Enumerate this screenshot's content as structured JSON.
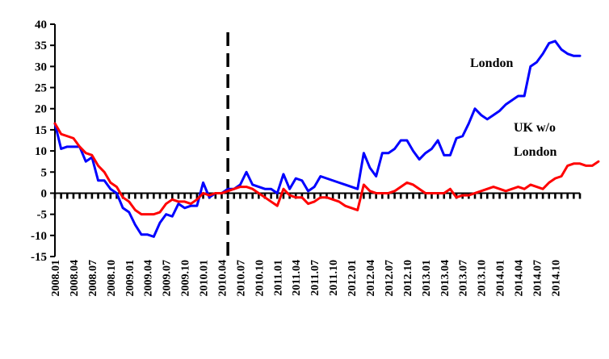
{
  "chart_data": {
    "type": "line",
    "title": "",
    "xlabel": "",
    "ylabel": "",
    "ylim": [
      -15,
      40
    ],
    "yticks": [
      -15,
      -10,
      -5,
      0,
      5,
      10,
      15,
      20,
      25,
      30,
      35,
      40
    ],
    "x_start": "2008.01",
    "x_tick_labels": [
      "2008.01",
      "2008.04",
      "2008.07",
      "2008.10",
      "2009.01",
      "2009.04",
      "2009.07",
      "2009.10",
      "2010.01",
      "2010.04",
      "2010.07",
      "2010.10",
      "2011.01",
      "2011.04",
      "2011.07",
      "2011.10",
      "2012.01",
      "2012.04",
      "2012.07",
      "2012.10",
      "2013.01",
      "2013.04",
      "2013.07",
      "2013.10",
      "2014.01",
      "2014.04",
      "2014.07",
      "2014.10"
    ],
    "vertical_marker": "2010.05",
    "grid": false,
    "series": [
      {
        "name": "London",
        "color": "#0000ff",
        "label_lines": [
          "London"
        ],
        "values": [
          16.5,
          10.5,
          11,
          11,
          11,
          7.5,
          8.5,
          3,
          3,
          1,
          0,
          -3.5,
          -4.5,
          -7.5,
          -9.8,
          -9.8,
          -10.3,
          -7,
          -5,
          -5.5,
          -2.5,
          -3.5,
          -3,
          -3,
          2.5,
          -1,
          0,
          0,
          1,
          1,
          2,
          5,
          2,
          1.5,
          1,
          1,
          0,
          4.5,
          1,
          3.5,
          3,
          0.5,
          1.5,
          4,
          3.5,
          3,
          2.5,
          2,
          1.5,
          1,
          9.5,
          6,
          4,
          9.5,
          9.5,
          10.5,
          12.5,
          12.5,
          10,
          8,
          9.5,
          10.5,
          12.5,
          9,
          9,
          13,
          13.5,
          16.5,
          20,
          18.5,
          17.5,
          18.5,
          19.5,
          21,
          22,
          23,
          23,
          30,
          31,
          33,
          35.5,
          36,
          34,
          33,
          32.5,
          32.5
        ]
      },
      {
        "name": "UK w/o London",
        "color": "#ff0000",
        "label_lines": [
          "UK w/o",
          "London"
        ],
        "values": [
          16.5,
          14,
          13.5,
          13,
          11,
          9.5,
          9,
          6.5,
          5,
          2.5,
          1.5,
          -1,
          -2,
          -4,
          -5,
          -5,
          -5,
          -4.5,
          -2.5,
          -1.5,
          -2,
          -2,
          -2.5,
          -1.5,
          0,
          -0.5,
          0,
          0,
          0.5,
          1,
          1.5,
          1.5,
          1,
          0,
          -1,
          -2,
          -3,
          1,
          -0.5,
          -1,
          -1,
          -2.5,
          -2,
          -1,
          -1,
          -1.5,
          -2,
          -3,
          -3.5,
          -4,
          2,
          0.5,
          0,
          0,
          0,
          0.5,
          1.5,
          2.5,
          2,
          1,
          0,
          0,
          0,
          0,
          1,
          -1,
          -0.5,
          -0.5,
          0,
          0.5,
          1,
          1.5,
          1,
          0.5,
          1,
          1.5,
          1,
          2,
          1.5,
          1,
          2.5,
          3.5,
          4,
          6.5,
          7,
          7,
          6.5,
          6.5,
          7.5
        ]
      }
    ]
  }
}
